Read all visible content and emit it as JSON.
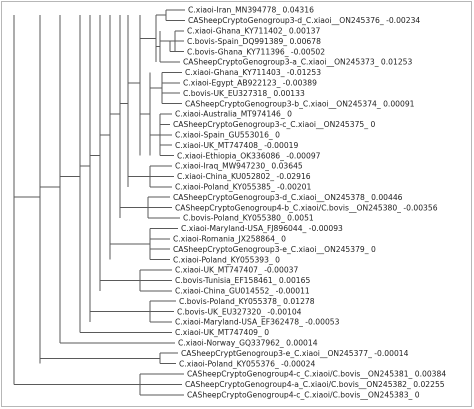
{
  "leaves": [
    "C.xiaoi-Iran_MN394778_ 0.04316",
    "CASheepCryptoGenogroup3-d_C.xiaoi__ON245376_ -0.00234",
    "C.xiaoi-Ghana_KY711402_ 0.00137",
    "C.bovis-Spain_DQ991389_ 0.00678",
    "C.bovis-Ghana_KY711396_ -0.00502",
    "CASheepCryptoGenogroup3-a_C.xiaoi__ON245373_ 0.01253",
    "C.xiaoi-Ghana_KY711403_ -0.01253",
    "C.xiaoi-Egypt_AB922123_ -0.00389",
    "C.bovis-UK_EU327318_ 0.00133",
    "CASheepCryptoGenogroup3-b_C.xiaoi__ON245374_ 0.00091",
    "C.xiaoi-Australia_MT974146_ 0",
    "CASheepCryptoGenogroup3-c_C.xiaoi__ON245375_ 0",
    "C.xiaoi-Spain_GU553016_ 0",
    "C.xiaoi-UK_MT747408_ -0.00019",
    "C.xiaoi-Ethiopia_OK336086_ -0.00097",
    "C.xiaoi-Iraq_MW947230_ 0.03645",
    "C.xiaoi-China_KU052802_ -0.02916",
    "C.xiaoi-Poland_KY055385_ -0.00201",
    "CASheepCryptoGenogroup3-d_C.xiaoi__ON245378_ 0.00446",
    "CASheepCryptoGenogroup4-b_C.xiaoi/C.bovis__ON245380_ -0.00356",
    "C.bovis-Poland_KY055380_ 0.0051",
    "C.xiaoi-Maryland-USA_FJ896044_ -0.00093",
    "C.xiaoi-Romania_JX258864_ 0",
    "CASheepCryptoGenogroup3-e_C.xiaoi__ON245379_ 0",
    "C.xiaoi-Poland_KY055393_ 0",
    "C.xiaoi-UK_MT747407_ -0.00037",
    "C.bovis-Tunisia_EF158461_ 0.00165",
    "C.xiaoi-China_GU014552_ -0.00011",
    "C.bovis-Poland_KY055378_ 0.01278",
    "C.bovis-UK_EU327320_ -0.00104",
    "C.xiaoi-Maryland-USA_EF362478_ -0.00053",
    "C.xiaoi-UK_MT747409_ 0",
    "C.xiaoi-Norway_GQ337962_ 0.00014",
    "CASheepCryptGenogroup3-e_C.xiaoi__ON245377_ -0.00014",
    "C.xiaoi-Poland_KY055376_ -0.00024",
    "CASheepCryptoGenogroup4-c_C.xiaoi/C.bovis__ON245381_ 0.00384",
    "CASheepCryptoGenogroup4-a_C.xiaoi/C.bovis__ON245382_ 0.02255",
    "CASheepCryptoGenogroup4-c_C.xiaoi/C.bovis__ON245383_ 0"
  ]
}
